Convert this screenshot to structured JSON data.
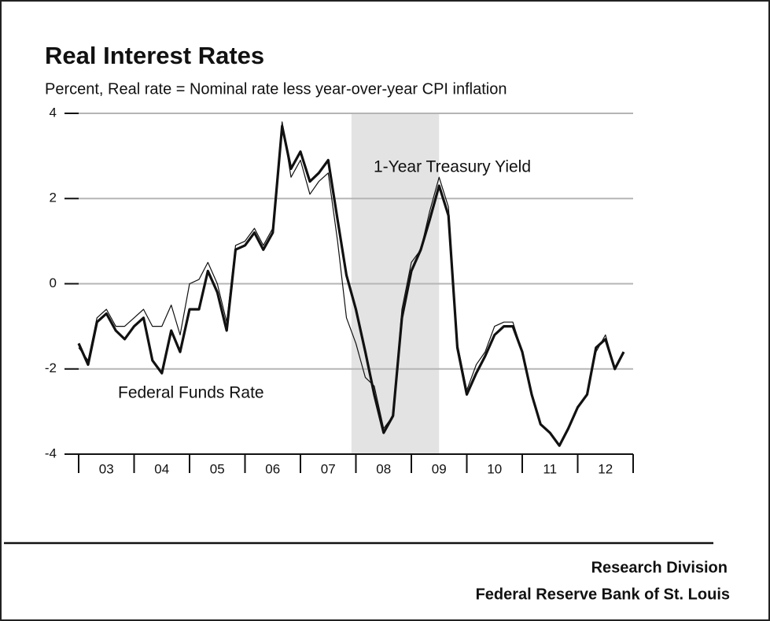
{
  "chart_data": {
    "type": "line",
    "title": "Real Interest Rates",
    "subtitle": "Percent, Real rate = Nominal rate less year-over-year CPI inflation",
    "source": [
      "Research Division",
      "Federal Reserve Bank of St. Louis"
    ],
    "x": [
      2003,
      2003.17,
      2003.33,
      2003.5,
      2003.67,
      2003.83,
      2004,
      2004.17,
      2004.33,
      2004.5,
      2004.67,
      2004.83,
      2005,
      2005.17,
      2005.33,
      2005.5,
      2005.67,
      2005.83,
      2006,
      2006.17,
      2006.33,
      2006.5,
      2006.67,
      2006.83,
      2007,
      2007.17,
      2007.33,
      2007.5,
      2007.67,
      2007.83,
      2008,
      2008.17,
      2008.33,
      2008.5,
      2008.67,
      2008.83,
      2009,
      2009.17,
      2009.33,
      2009.5,
      2009.67,
      2009.83,
      2010,
      2010.17,
      2010.33,
      2010.5,
      2010.67,
      2010.83,
      2011,
      2011.17,
      2011.33,
      2011.5,
      2011.67,
      2011.83,
      2012,
      2012.17,
      2012.33,
      2012.5,
      2012.67,
      2012.83
    ],
    "series": [
      {
        "name": "Federal Funds Rate",
        "color": "#111111",
        "line_width": 3.2,
        "values": [
          -1.4,
          -1.9,
          -0.9,
          -0.7,
          -1.1,
          -1.3,
          -1.0,
          -0.8,
          -1.8,
          -2.1,
          -1.1,
          -1.6,
          -0.6,
          -0.6,
          0.3,
          -0.2,
          -1.1,
          0.8,
          0.9,
          1.2,
          0.8,
          1.2,
          3.7,
          2.7,
          3.1,
          2.4,
          2.6,
          2.9,
          1.5,
          0.2,
          -0.6,
          -1.6,
          -2.6,
          -3.5,
          -3.1,
          -0.8,
          0.3,
          0.8,
          1.5,
          2.3,
          1.6,
          -1.5,
          -2.6,
          -2.1,
          -1.7,
          -1.2,
          -1.0,
          -1.0,
          -1.6,
          -2.6,
          -3.3,
          -3.5,
          -3.8,
          -3.4,
          -2.9,
          -2.6,
          -1.5,
          -1.3,
          -2.0,
          -1.6
        ]
      },
      {
        "name": "1-Year Treasury Yield",
        "color": "#111111",
        "line_width": 1.2,
        "values": [
          -1.5,
          -1.8,
          -0.8,
          -0.6,
          -1.0,
          -1.0,
          -0.8,
          -0.6,
          -1.0,
          -1.0,
          -0.5,
          -1.2,
          0.0,
          0.1,
          0.5,
          0.0,
          -0.9,
          0.9,
          1.0,
          1.3,
          0.9,
          1.3,
          3.8,
          2.5,
          2.9,
          2.1,
          2.4,
          2.6,
          1.0,
          -0.8,
          -1.4,
          -2.2,
          -2.4,
          -3.4,
          -3.1,
          -0.6,
          0.5,
          0.8,
          1.7,
          2.5,
          1.8,
          -1.4,
          -2.5,
          -1.9,
          -1.6,
          -1.0,
          -0.9,
          -0.9,
          -1.6,
          -2.6,
          -3.3,
          -3.5,
          -3.8,
          -3.4,
          -2.9,
          -2.6,
          -1.6,
          -1.2,
          -2.0,
          -1.6
        ]
      }
    ],
    "shade_x": [
      2007.92,
      2009.5
    ],
    "xlim": [
      2003,
      2013
    ],
    "xticks": [
      {
        "value": 2003.5,
        "label": "03"
      },
      {
        "value": 2004.5,
        "label": "04"
      },
      {
        "value": 2005.5,
        "label": "05"
      },
      {
        "value": 2006.5,
        "label": "06"
      },
      {
        "value": 2007.5,
        "label": "07"
      },
      {
        "value": 2008.5,
        "label": "08"
      },
      {
        "value": 2009.5,
        "label": "09"
      },
      {
        "value": 2010.5,
        "label": "10"
      },
      {
        "value": 2011.5,
        "label": "11"
      },
      {
        "value": 2012.5,
        "label": "12"
      }
    ],
    "ylim": [
      -4,
      4
    ],
    "yticks": [
      -4,
      -2,
      0,
      2,
      4
    ],
    "grid": true
  }
}
